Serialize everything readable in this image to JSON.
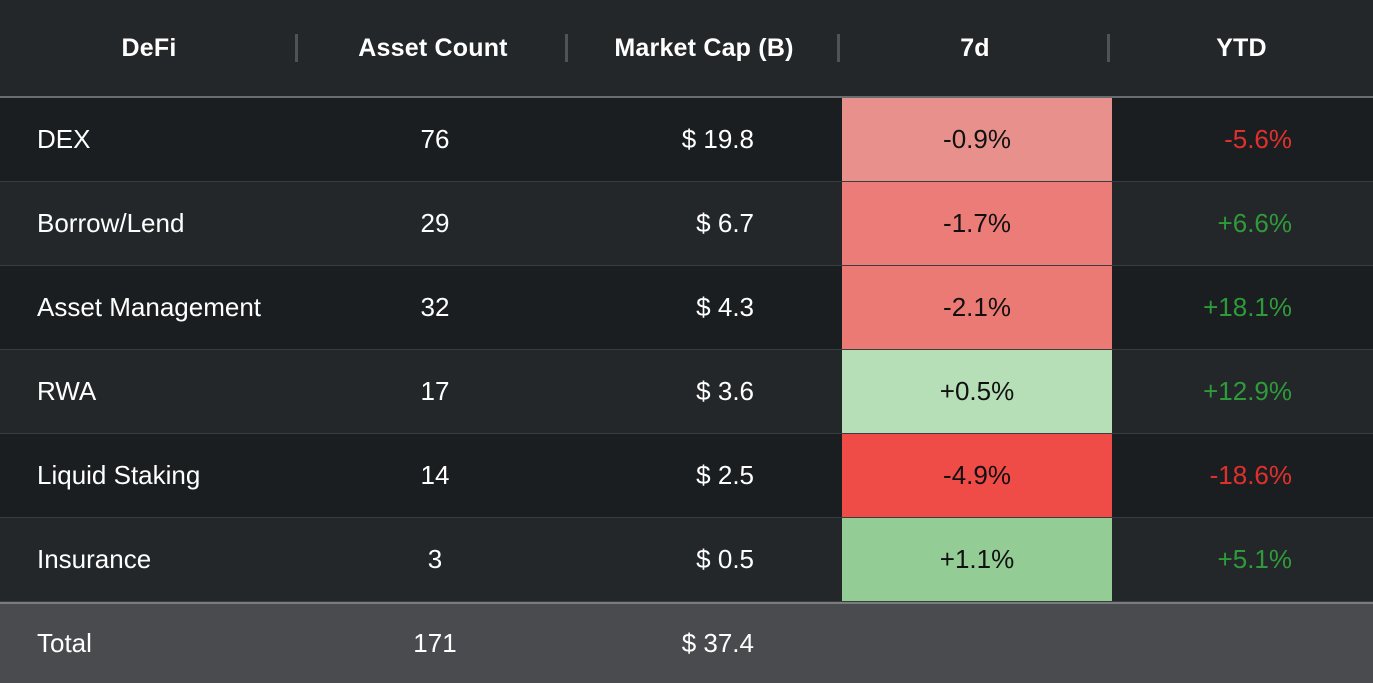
{
  "header": {
    "col_defi": "DeFi",
    "col_asset_count": "Asset Count",
    "col_market_cap": "Market Cap (B)",
    "col_7d": "7d",
    "col_ytd": "YTD"
  },
  "rows": [
    {
      "name": "DEX",
      "count": "76",
      "mcap": "$ 19.8",
      "d7": "-0.9%",
      "d7_color": "#e8918c",
      "ytd": "-5.6%",
      "ytd_dir": "neg"
    },
    {
      "name": "Borrow/Lend",
      "count": "29",
      "mcap": "$ 6.7",
      "d7": "-1.7%",
      "d7_color": "#eb7c77",
      "ytd": "+6.6%",
      "ytd_dir": "pos"
    },
    {
      "name": "Asset Management",
      "count": "32",
      "mcap": "$ 4.3",
      "d7": "-2.1%",
      "d7_color": "#ec7a74",
      "ytd": "+18.1%",
      "ytd_dir": "pos"
    },
    {
      "name": "RWA",
      "count": "17",
      "mcap": "$ 3.6",
      "d7": "+0.5%",
      "d7_color": "#b6dfb8",
      "ytd": "+12.9%",
      "ytd_dir": "pos"
    },
    {
      "name": "Liquid Staking",
      "count": "14",
      "mcap": "$ 2.5",
      "d7": "-4.9%",
      "d7_color": "#ef4b47",
      "ytd": "-18.6%",
      "ytd_dir": "neg"
    },
    {
      "name": "Insurance",
      "count": "3",
      "mcap": "$ 0.5",
      "d7": "+1.1%",
      "d7_color": "#93cd95",
      "ytd": "+5.1%",
      "ytd_dir": "pos"
    }
  ],
  "total": {
    "label": "Total",
    "count": "171",
    "mcap": "$ 37.4"
  },
  "colors": {
    "negative_text": "#e0302c",
    "positive_text": "#2f9a3a",
    "background": "#1c1e20",
    "total_background": "#4a4b4e"
  }
}
